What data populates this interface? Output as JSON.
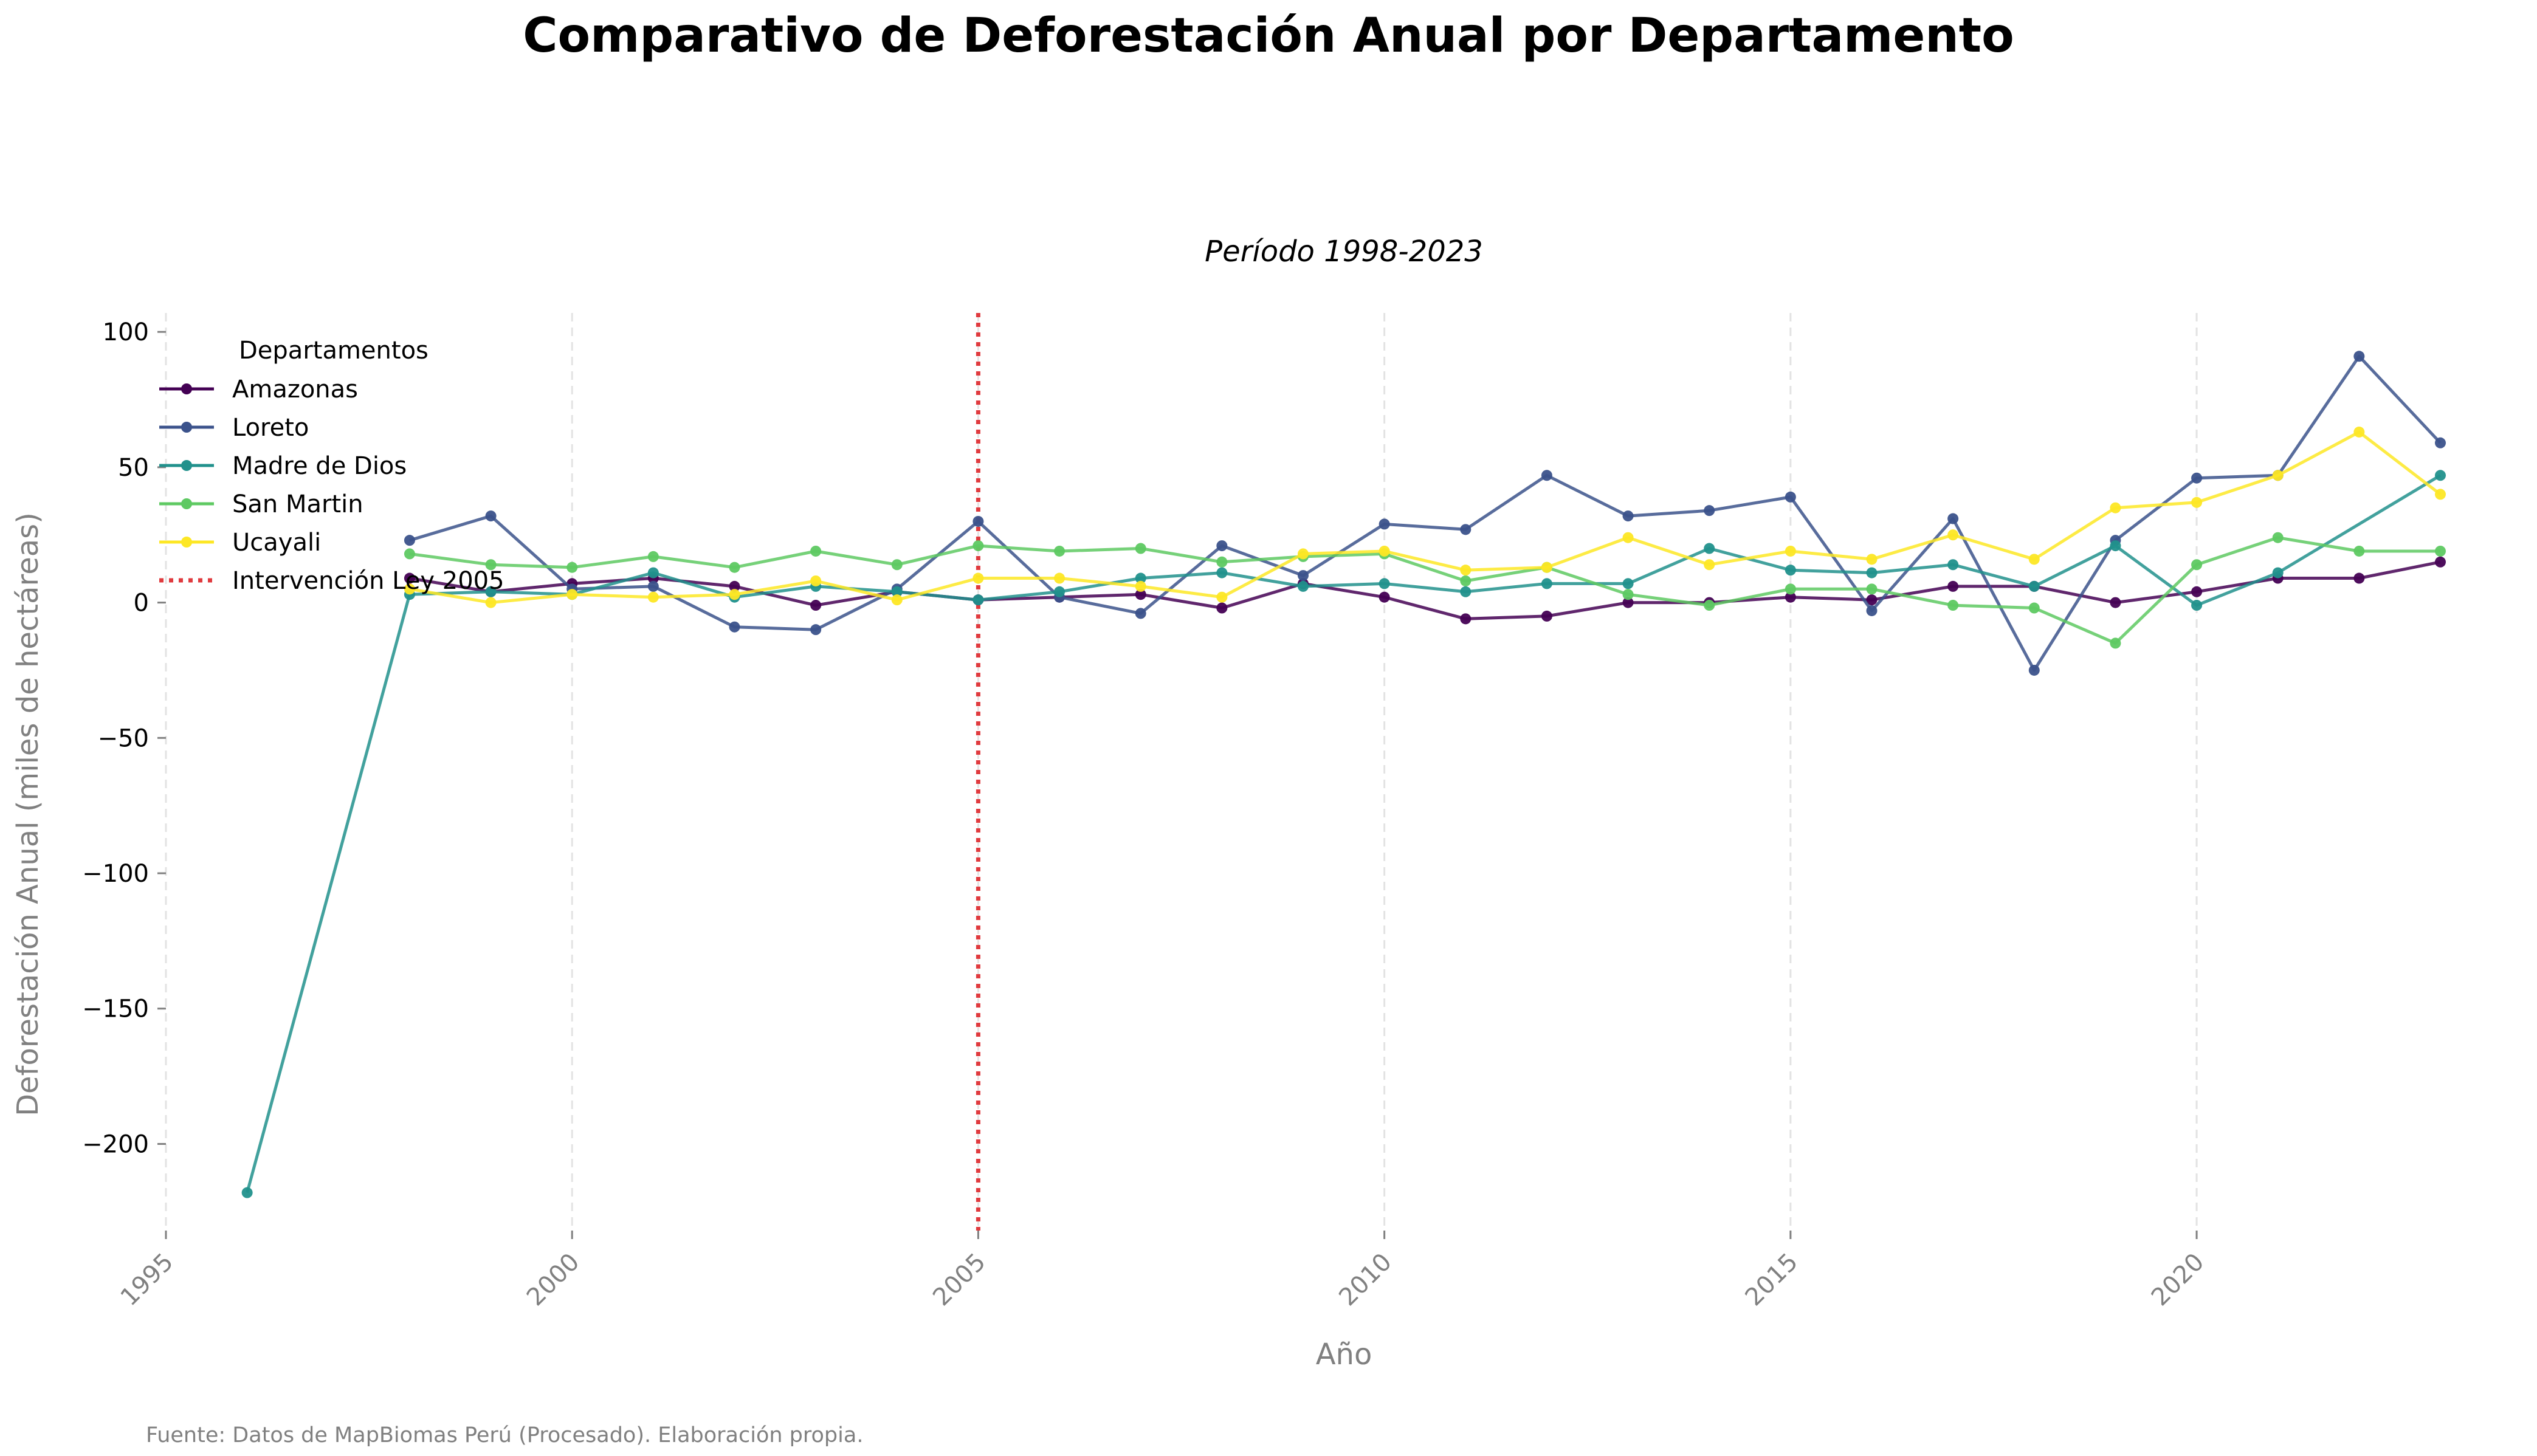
{
  "chart_data": {
    "type": "line",
    "title": "Comparativo de Deforestación Anual por Departamento",
    "subtitle": "Período 1998-2023",
    "xlabel": "Año",
    "ylabel": "Deforestación Anual (miles de hectáreas)",
    "source": "Fuente: Datos de MapBiomas Perú (Procesado). Elaboración propia.",
    "xlim": [
      1995,
      2023
    ],
    "ylim": [
      -232,
      107
    ],
    "x_ticks": [
      1995,
      2000,
      2005,
      2010,
      2015,
      2020
    ],
    "y_ticks": [
      100,
      50,
      0,
      -50,
      -100,
      -150,
      -200
    ],
    "y_tick_labels": [
      "100",
      "50",
      "0",
      "−50",
      "−100",
      "−150",
      "−200"
    ],
    "grid": "vertical-dashed",
    "legend": {
      "title": "Departamentos",
      "placement": "top-left",
      "intervention_label": "Intervención Ley 2005"
    },
    "vline": {
      "x": 2005,
      "color": "#e03a3e"
    },
    "series": [
      {
        "name": "Amazonas",
        "color": "#440154",
        "x": [
          1998,
          1999,
          2000,
          2001,
          2002,
          2003,
          2004,
          2005,
          2006,
          2007,
          2008,
          2009,
          2010,
          2011,
          2012,
          2013,
          2014,
          2015,
          2016,
          2017,
          2018,
          2019,
          2020,
          2021,
          2022,
          2023
        ],
        "values": [
          9,
          4,
          7,
          9,
          6,
          -1,
          4,
          1,
          2,
          3,
          -2,
          7,
          2,
          -6,
          -5,
          0,
          0,
          2,
          1,
          6,
          6,
          0,
          4,
          9,
          9,
          15
        ]
      },
      {
        "name": "Loreto",
        "color": "#3b528b",
        "x": [
          1998,
          1999,
          2000,
          2001,
          2002,
          2003,
          2004,
          2005,
          2006,
          2007,
          2008,
          2009,
          2010,
          2011,
          2012,
          2013,
          2014,
          2015,
          2016,
          2017,
          2018,
          2019,
          2020,
          2021,
          2022,
          2023
        ],
        "values": [
          23,
          32,
          5,
          6,
          -9,
          -10,
          5,
          30,
          2,
          -4,
          21,
          10,
          29,
          27,
          47,
          32,
          34,
          39,
          -3,
          31,
          -25,
          23,
          46,
          47,
          91,
          59
        ]
      },
      {
        "name": "Madre de Dios",
        "color": "#21918c",
        "x": [
          1996,
          1998,
          1999,
          2000,
          2001,
          2002,
          2003,
          2004,
          2005,
          2006,
          2007,
          2008,
          2009,
          2010,
          2011,
          2012,
          2013,
          2014,
          2015,
          2016,
          2017,
          2018,
          2019,
          2020,
          2021,
          2023
        ],
        "values": [
          -218,
          3,
          4,
          3,
          11,
          2,
          6,
          4,
          1,
          4,
          9,
          11,
          6,
          7,
          4,
          7,
          7,
          20,
          12,
          11,
          14,
          6,
          21,
          -1,
          11,
          47
        ]
      },
      {
        "name": "San Martin",
        "color": "#5ec962",
        "x": [
          1998,
          1999,
          2000,
          2001,
          2002,
          2003,
          2004,
          2005,
          2006,
          2007,
          2008,
          2009,
          2010,
          2011,
          2012,
          2013,
          2014,
          2015,
          2016,
          2017,
          2018,
          2019,
          2020,
          2021,
          2022,
          2023
        ],
        "values": [
          18,
          14,
          13,
          17,
          13,
          19,
          14,
          21,
          19,
          20,
          15,
          17,
          18,
          8,
          13,
          3,
          -1,
          5,
          5,
          -1,
          -2,
          -15,
          14,
          24,
          19,
          19
        ]
      },
      {
        "name": "Ucayali",
        "color": "#fde725",
        "x": [
          1998,
          1999,
          2000,
          2001,
          2002,
          2003,
          2004,
          2005,
          2006,
          2007,
          2008,
          2009,
          2010,
          2011,
          2012,
          2013,
          2014,
          2015,
          2016,
          2017,
          2018,
          2019,
          2020,
          2021,
          2022,
          2023
        ],
        "values": [
          5,
          0,
          3,
          2,
          3,
          8,
          1,
          9,
          9,
          6,
          2,
          18,
          19,
          12,
          13,
          24,
          14,
          19,
          16,
          25,
          16,
          35,
          37,
          47,
          63,
          40
        ]
      }
    ]
  }
}
